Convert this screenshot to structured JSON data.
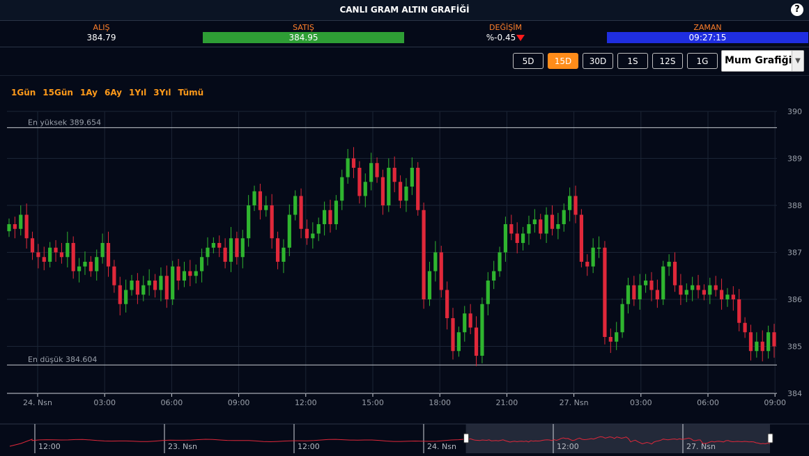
{
  "header": {
    "title": "CANLI GRAM ALTIN GRAFİĞİ",
    "help": "?"
  },
  "stats": {
    "alis": {
      "label": "ALIŞ",
      "value": "384.79"
    },
    "satis": {
      "label": "SATIŞ",
      "value": "384.95"
    },
    "degisim": {
      "label": "DEĞİŞİM",
      "value": "%-0.45"
    },
    "zaman": {
      "label": "ZAMAN",
      "value": "09:27:15"
    }
  },
  "ranges": [
    "5D",
    "15D",
    "30D",
    "1S",
    "12S",
    "1G"
  ],
  "active_range": "15D",
  "chart_type_select": "Mum Grafiği",
  "zoom": [
    "1Gün",
    "15Gün",
    "1Ay",
    "6Ay",
    "1Yıl",
    "3Yıl",
    "Tümü"
  ],
  "colors": {
    "up": "#2fb52f",
    "down": "#e0283a",
    "accent": "#ff8c1a",
    "nav_line": "#e0283a"
  },
  "chart_data": {
    "type": "candlestick",
    "ylim": [
      384,
      390
    ],
    "y_ticks": [
      384,
      385,
      386,
      387,
      388,
      389,
      390
    ],
    "x_ticks": [
      "24. Nsn",
      "03:00",
      "06:00",
      "09:00",
      "12:00",
      "15:00",
      "18:00",
      "21:00",
      "27. Nsn",
      "03:00",
      "06:00",
      "09:00"
    ],
    "high_line": {
      "label": "En yüksek 389.654",
      "value": 389.654
    },
    "low_line": {
      "label": "En düşük 384.604",
      "value": 384.604
    },
    "close": [
      387.6,
      387.5,
      387.8,
      387.3,
      387.0,
      386.9,
      386.8,
      387.1,
      387.0,
      386.9,
      387.2,
      386.6,
      386.7,
      386.8,
      386.6,
      386.9,
      387.2,
      386.7,
      386.3,
      385.9,
      386.2,
      386.4,
      386.1,
      386.3,
      386.4,
      386.2,
      386.5,
      386.0,
      386.7,
      386.4,
      386.6,
      386.5,
      386.6,
      386.9,
      387.1,
      387.2,
      387.1,
      386.8,
      387.3,
      386.9,
      387.3,
      388.0,
      388.3,
      387.9,
      388.0,
      387.3,
      386.8,
      387.1,
      387.8,
      388.2,
      387.5,
      387.3,
      387.4,
      387.6,
      387.9,
      387.6,
      388.1,
      388.6,
      389.0,
      388.8,
      388.2,
      388.5,
      388.9,
      388.6,
      388.0,
      388.8,
      388.5,
      388.1,
      388.4,
      388.8,
      387.9,
      386.0,
      386.6,
      387.0,
      386.2,
      385.6,
      384.9,
      385.3,
      385.7,
      385.4,
      384.8,
      385.9,
      386.4,
      386.6,
      387.0,
      387.6,
      387.4,
      387.2,
      387.4,
      387.6,
      387.7,
      387.4,
      387.8,
      387.5,
      387.6,
      387.9,
      388.2,
      387.8,
      386.8,
      386.7,
      387.1,
      387.1,
      385.2,
      385.1,
      385.3,
      385.9,
      386.3,
      386.0,
      386.3,
      386.4,
      386.2,
      386.0,
      386.7,
      386.8,
      386.3,
      386.1,
      386.2,
      386.3,
      386.2,
      386.1,
      386.3,
      386.2,
      386.0,
      386.1,
      386.0,
      385.5,
      385.3,
      384.9,
      385.1,
      384.9,
      385.3,
      385.0
    ],
    "navigator": {
      "x_ticks": [
        "12:00",
        "23. Nsn",
        "12:00",
        "24. Nsn",
        "12:00",
        "27. Nsn"
      ],
      "window": [
        0.6,
        1.0
      ]
    }
  }
}
